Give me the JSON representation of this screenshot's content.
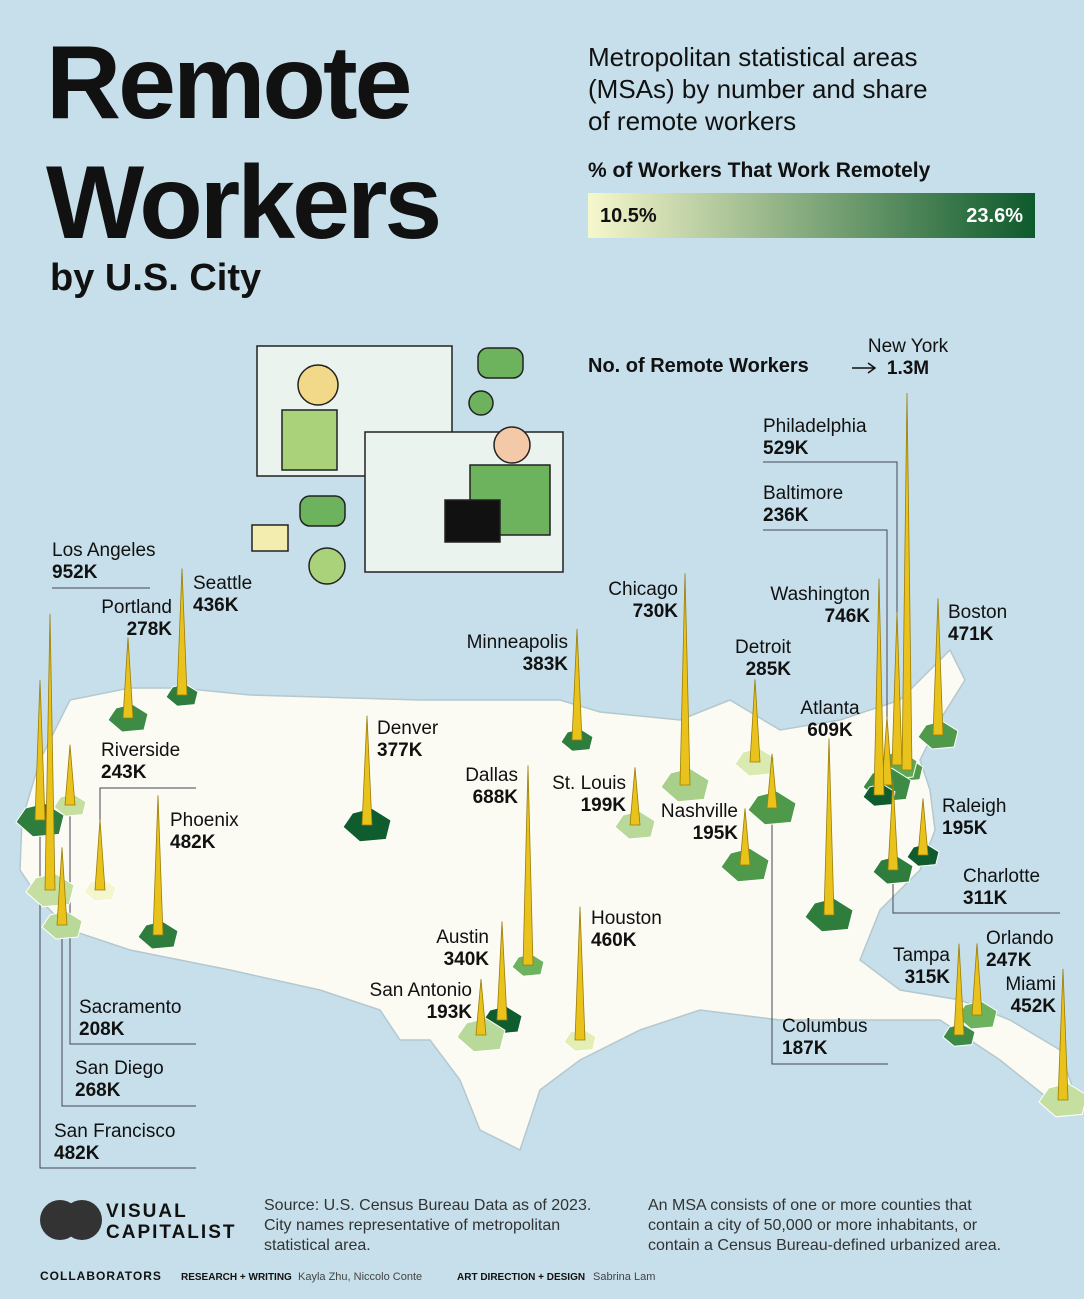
{
  "header": {
    "title_line1": "Remote",
    "title_line2": "Workers",
    "subtitle": "by U.S. City",
    "description": [
      "Metropolitan statistical areas",
      "(MSAs) by number and share",
      "of remote workers"
    ]
  },
  "legend": {
    "title": "% of Workers That Work Remotely",
    "min": {
      "value": 10.5,
      "label": "10.5%"
    },
    "max": {
      "value": 23.6,
      "label": "23.6%"
    },
    "low_color": "#f7f7cc",
    "high_color": "#0d5a2c"
  },
  "size_legend": {
    "label": "No. of Remote Workers"
  },
  "cities": [
    {
      "name": "New York",
      "value": 1300000,
      "value_label": "1.3M",
      "color": "#4f9a4a"
    },
    {
      "name": "Philadelphia",
      "value": 529000,
      "value_label": "529K",
      "color": "#5ea856"
    },
    {
      "name": "Baltimore",
      "value": 236000,
      "value_label": "236K",
      "color": "#3d8b45"
    },
    {
      "name": "Washington",
      "value": 746000,
      "value_label": "746K",
      "color": "#0f5c2e"
    },
    {
      "name": "Boston",
      "value": 471000,
      "value_label": "471K",
      "color": "#4f9a4a"
    },
    {
      "name": "Chicago",
      "value": 730000,
      "value_label": "730K",
      "color": "#a8d08b"
    },
    {
      "name": "Minneapolis",
      "value": 383000,
      "value_label": "383K",
      "color": "#2f7d3d"
    },
    {
      "name": "Detroit",
      "value": 285000,
      "value_label": "285K",
      "color": "#d9ebb0"
    },
    {
      "name": "Atlanta",
      "value": 609000,
      "value_label": "609K",
      "color": "#2f7d3d"
    },
    {
      "name": "Seattle",
      "value": 436000,
      "value_label": "436K",
      "color": "#2f7d3d"
    },
    {
      "name": "Portland",
      "value": 278000,
      "value_label": "278K",
      "color": "#3d8b45"
    },
    {
      "name": "Los Angeles",
      "value": 952000,
      "value_label": "952K",
      "color": "#c4df9f"
    },
    {
      "name": "Riverside",
      "value": 243000,
      "value_label": "243K",
      "color": "#f5f5cf"
    },
    {
      "name": "Phoenix",
      "value": 482000,
      "value_label": "482K",
      "color": "#2f7d3d"
    },
    {
      "name": "Denver",
      "value": 377000,
      "value_label": "377K",
      "color": "#0f5c2e"
    },
    {
      "name": "Dallas",
      "value": 688000,
      "value_label": "688K",
      "color": "#6db35d"
    },
    {
      "name": "St. Louis",
      "value": 199000,
      "value_label": "199K",
      "color": "#b8d99a"
    },
    {
      "name": "Nashville",
      "value": 195000,
      "value_label": "195K",
      "color": "#4f9a4a"
    },
    {
      "name": "Raleigh",
      "value": 195000,
      "value_label": "195K",
      "color": "#0f5c2e"
    },
    {
      "name": "Charlotte",
      "value": 311000,
      "value_label": "311K",
      "color": "#2f7d3d"
    },
    {
      "name": "Columbus",
      "value": 187000,
      "value_label": "187K",
      "color": "#4f9a4a"
    },
    {
      "name": "Houston",
      "value": 460000,
      "value_label": "460K",
      "color": "#e4efb5"
    },
    {
      "name": "Austin",
      "value": 340000,
      "value_label": "340K",
      "color": "#0f5c2e"
    },
    {
      "name": "San Antonio",
      "value": 193000,
      "value_label": "193K",
      "color": "#b8d99a"
    },
    {
      "name": "Tampa",
      "value": 315000,
      "value_label": "315K",
      "color": "#3d8b45"
    },
    {
      "name": "Orlando",
      "value": 247000,
      "value_label": "247K",
      "color": "#6db35d"
    },
    {
      "name": "Miami",
      "value": 452000,
      "value_label": "452K",
      "color": "#c4df9f"
    },
    {
      "name": "Sacramento",
      "value": 208000,
      "value_label": "208K",
      "color": "#c4df9f"
    },
    {
      "name": "San Diego",
      "value": 268000,
      "value_label": "268K",
      "color": "#b8d99a"
    },
    {
      "name": "San Francisco",
      "value": 482000,
      "value_label": "482K",
      "color": "#2f7d3d"
    }
  ],
  "footer": {
    "logo": [
      "VISUAL",
      "CAPITALIST"
    ],
    "source": [
      "Source: U.S. Census Bureau Data as of 2023.",
      "City names representative of metropolitan",
      "statistical area."
    ],
    "note": [
      "An MSA consists of one or more counties that",
      "contain a city of 50,000 or more inhabitants, or",
      "contain a Census Bureau-defined urbanized area."
    ],
    "collaborators": "COLLABORATORS",
    "research_label": "RESEARCH + WRITING",
    "research_names": "Kayla Zhu, Niccolo Conte",
    "design_label": "ART DIRECTION + DESIGN",
    "design_names": "Sabrina Lam"
  }
}
